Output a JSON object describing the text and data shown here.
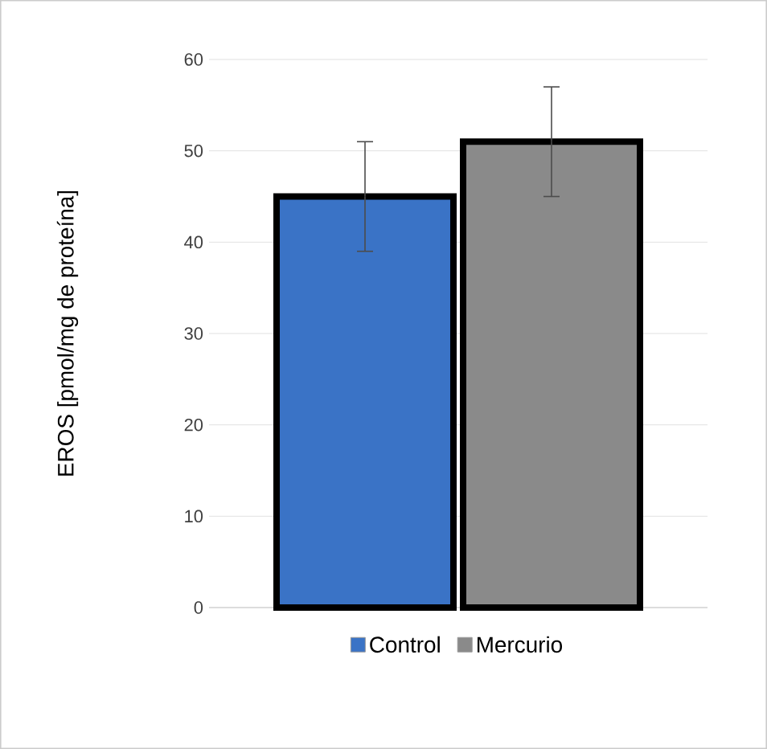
{
  "chart_data": {
    "type": "bar",
    "ylabel": "EROS  [pmol/mg de proteína]",
    "categories": [
      null
    ],
    "series": [
      {
        "name": "Control",
        "color": "#3a73c6",
        "values": [
          45
        ],
        "errors": [
          6
        ]
      },
      {
        "name": "Mercurio",
        "color": "#8a8a8a",
        "values": [
          51
        ],
        "errors": [
          6
        ]
      }
    ],
    "ylim": [
      0,
      60
    ],
    "yticks": [
      0,
      10,
      20,
      30,
      40,
      50,
      60
    ],
    "grid": "y",
    "legend": "bottom"
  }
}
